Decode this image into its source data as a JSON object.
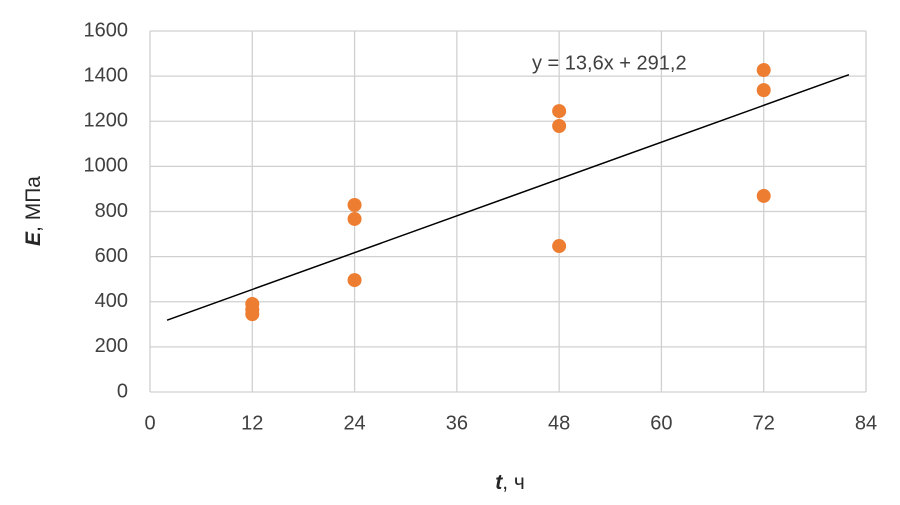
{
  "chart_data": {
    "type": "scatter",
    "x_label": {
      "symbol": "t",
      "unit": ", ч"
    },
    "y_label": {
      "symbol": "E",
      "unit": ", МПа"
    },
    "series": [
      {
        "color": "#ed7d31",
        "x": [
          12,
          12,
          12,
          24,
          24,
          24,
          48,
          48,
          48,
          72,
          72,
          72
        ],
        "values": [
          390,
          365,
          345,
          829,
          767,
          496,
          1245,
          1179,
          647,
          1427,
          1338,
          869
        ]
      }
    ],
    "trendline": {
      "label": "y = 13,6x + 291,2",
      "slope": 13.6,
      "intercept": 291.2,
      "x": [
        2,
        82
      ],
      "color": "#000000"
    },
    "xlim": [
      0,
      84
    ],
    "xticks": [
      0,
      12,
      24,
      36,
      48,
      60,
      72,
      84
    ],
    "ylim": [
      0,
      1600
    ],
    "yticks": [
      0,
      200,
      400,
      600,
      800,
      1000,
      1200,
      1400,
      1600
    ],
    "grid": true
  }
}
